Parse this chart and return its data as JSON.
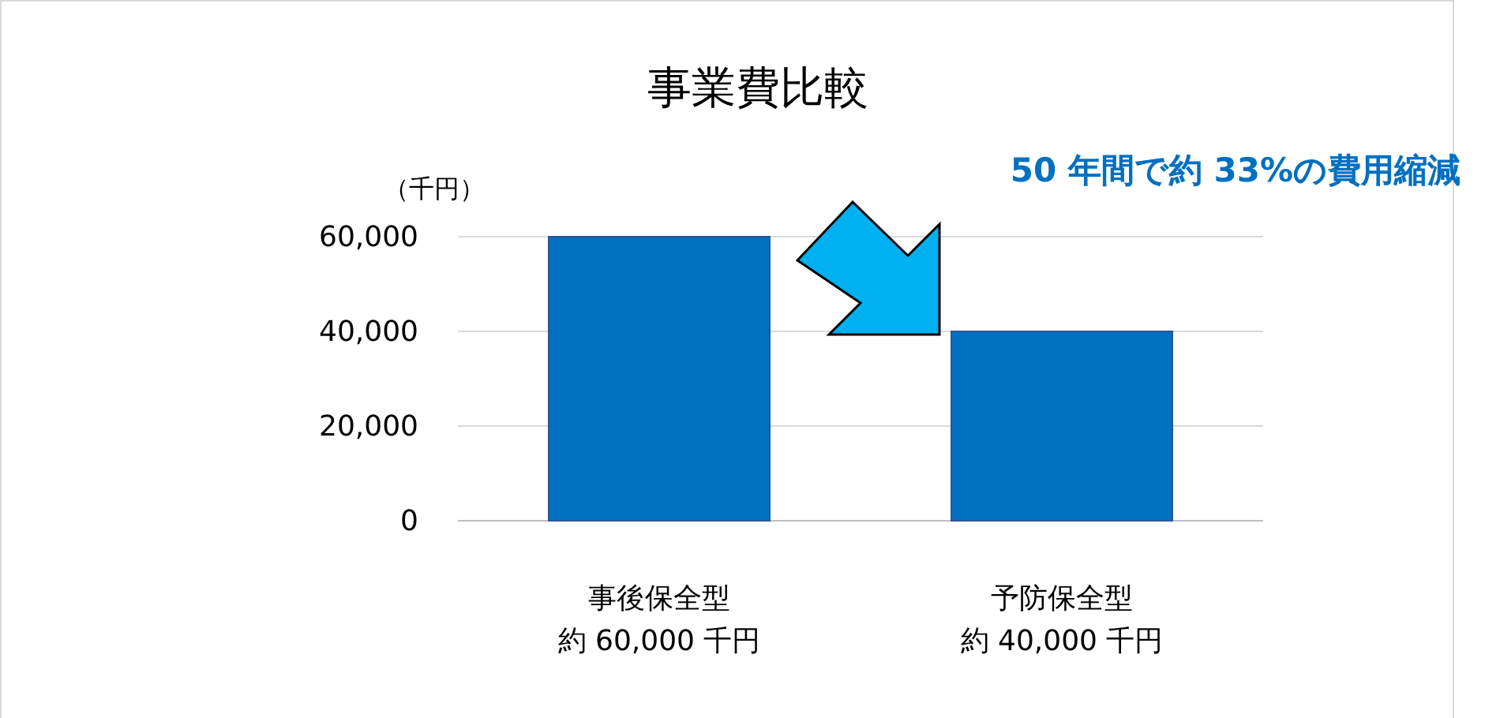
{
  "chart_data": {
    "type": "bar",
    "title": "事業費比較",
    "ylabel": "（千円）",
    "categories": [
      "事後保全型",
      "予防保全型"
    ],
    "values": [
      60000,
      40000
    ],
    "color": "#0070c0",
    "value_labels": [
      "約 60,000 千円",
      "約 40,000 千円"
    ],
    "ylim": [
      0,
      60000
    ],
    "yticks": [
      {
        "value": 0,
        "label": "0"
      },
      {
        "value": 20000,
        "label": "20,000"
      },
      {
        "value": 40000,
        "label": "40,000"
      },
      {
        "value": 60000,
        "label": "60,000"
      }
    ],
    "grid": "y",
    "annotations": [
      "50 年間で約 33%の費用縮減"
    ]
  }
}
